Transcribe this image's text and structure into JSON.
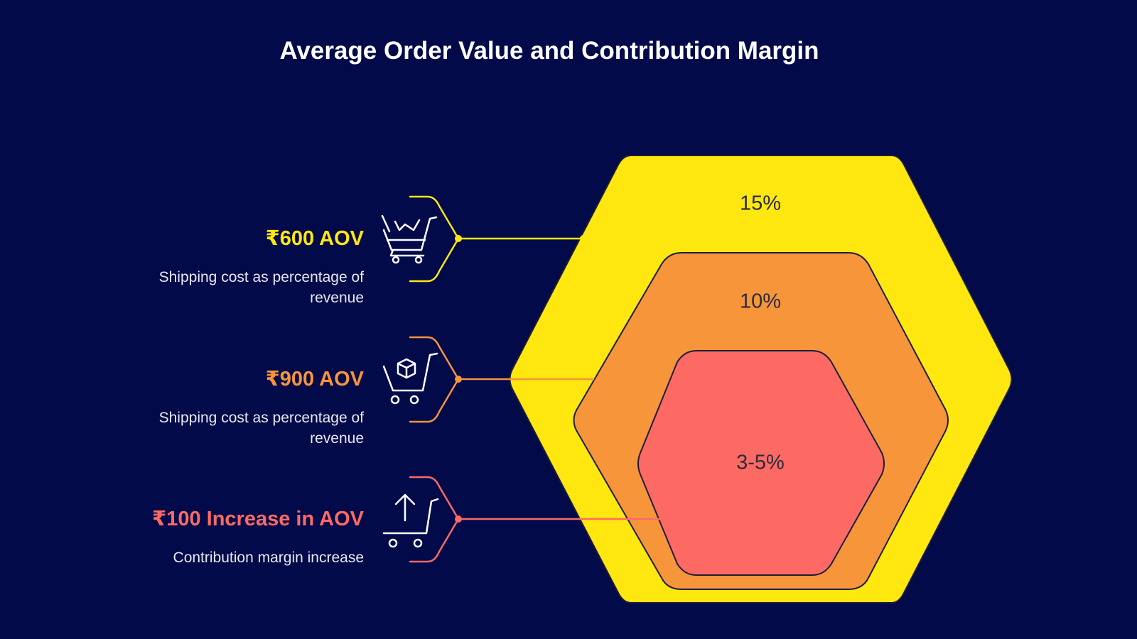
{
  "title": "Average Order Value and Contribution Margin",
  "items": [
    {
      "heading": "₹600 AOV",
      "description": "Shipping cost as percentage of revenue"
    },
    {
      "heading": "₹900 AOV",
      "description": "Shipping cost as percentage of revenue"
    },
    {
      "heading": "₹100 Increase in AOV",
      "description": "Contribution margin increase"
    }
  ],
  "layers": [
    {
      "label": "15%"
    },
    {
      "label": "10%"
    },
    {
      "label": "3-5%"
    }
  ]
}
